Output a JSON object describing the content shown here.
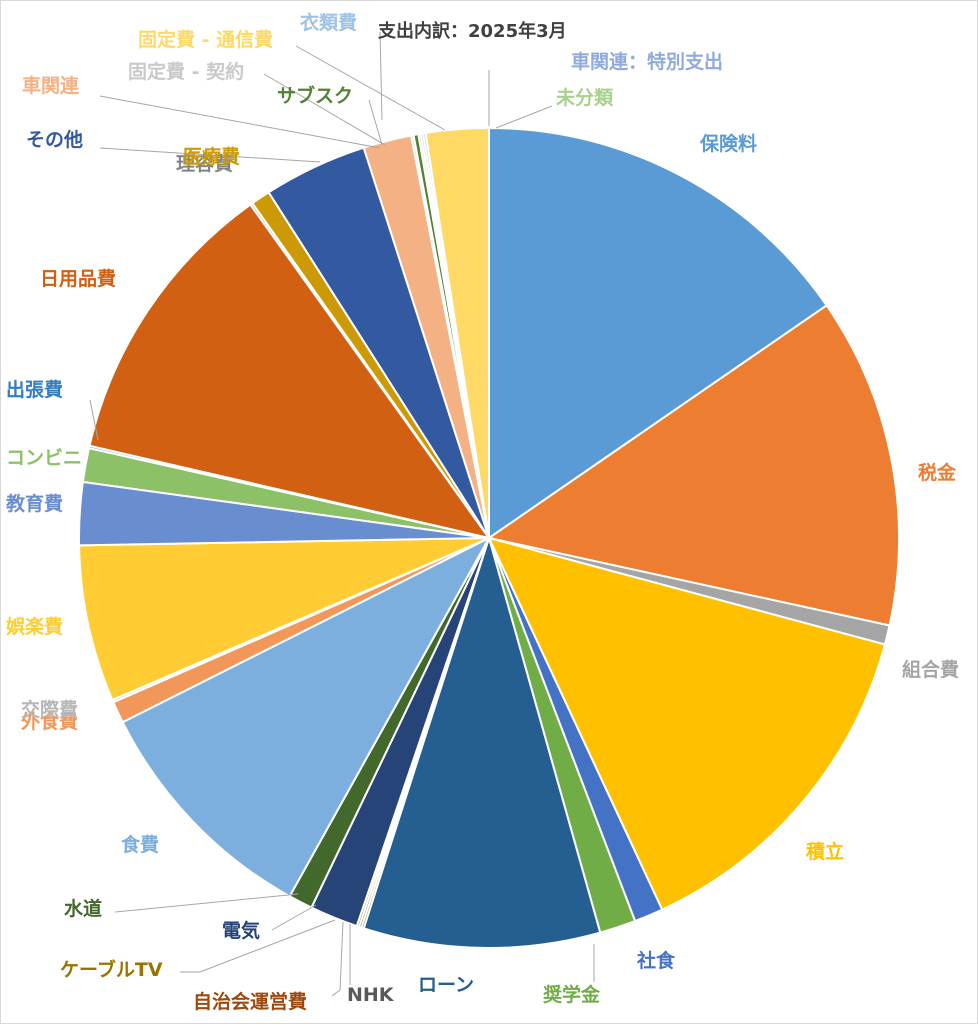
{
  "chart_data": {
    "type": "pie",
    "title": "支出内訳：2025年3月",
    "legend": "none",
    "slices": [
      {
        "label": "保険料",
        "value": 16.2,
        "color": "#5B9BD5"
      },
      {
        "label": "税金",
        "value": 13.7,
        "color": "#ED7D31"
      },
      {
        "label": "組合費",
        "value": 0.8,
        "color": "#A5A5A5"
      },
      {
        "label": "積立",
        "value": 14.6,
        "color": "#FFC000"
      },
      {
        "label": "社食",
        "value": 1.2,
        "color": "#4472C4"
      },
      {
        "label": "奨学金",
        "value": 1.5,
        "color": "#70AD47"
      },
      {
        "label": "ローン",
        "value": 9.8,
        "color": "#255E91"
      },
      {
        "label": "NHK",
        "value": 0.1,
        "color": "#9E480E"
      },
      {
        "label": "自治会運営費",
        "value": 0.1,
        "color": "#636363"
      },
      {
        "label": "ケーブルTV",
        "value": 0.1,
        "color": "#997300"
      },
      {
        "label": "電気",
        "value": 2.0,
        "color": "#264478"
      },
      {
        "label": "水道",
        "value": 1.0,
        "color": "#43682B"
      },
      {
        "label": "食費",
        "value": 10.0,
        "color": "#7CAFDD"
      },
      {
        "label": "外食費",
        "value": 0.9,
        "color": "#F1975A"
      },
      {
        "label": "交際費",
        "value": 0.1,
        "color": "#B7B7B7"
      },
      {
        "label": "娯楽費",
        "value": 6.5,
        "color": "#FFCD33"
      },
      {
        "label": "教育費",
        "value": 2.6,
        "color": "#698ED0"
      },
      {
        "label": "コンビニ",
        "value": 1.4,
        "color": "#8CC168"
      },
      {
        "label": "出張費",
        "value": 0.1,
        "color": "#327DC2"
      },
      {
        "label": "日用品費",
        "value": 12.1,
        "color": "#D26012"
      },
      {
        "label": "理容費",
        "value": 0.1,
        "color": "#848484"
      },
      {
        "label": "医療費",
        "value": 0.8,
        "color": "#CC9A06"
      },
      {
        "label": "その他",
        "value": 4.3,
        "color": "#335AA1"
      },
      {
        "label": "車関連",
        "value": 2.0,
        "color": "#F4B183"
      },
      {
        "label": "固定費 - 契約",
        "value": 0.1,
        "color": "#C9C9C9"
      },
      {
        "label": "サブスク",
        "value": 0.2,
        "color": "#548235"
      },
      {
        "label": "固定費 - 通信費",
        "value": 0.1,
        "color": "#FFD966"
      },
      {
        "label": "衣類費",
        "value": 0.1,
        "color": "#9DC3E6"
      },
      {
        "label": "車関連：特別支出",
        "value": 0.1,
        "color": "#8FAADC"
      },
      {
        "label": "未分類",
        "value": 2.6,
        "color": "#FFD966"
      }
    ],
    "label_colors": {
      "保険料": "#5B9BD5",
      "税金": "#ED7D31",
      "組合費": "#A5A5A5",
      "積立": "#FFC000",
      "社食": "#4472C4",
      "奨学金": "#70AD47",
      "ローン": "#255E91",
      "NHK": "#595959",
      "自治会運営費": "#9E480E",
      "ケーブルTV": "#997300",
      "電気": "#264478",
      "水道": "#43682B",
      "食費": "#7CAFDD",
      "外食費": "#F1975A",
      "交際費": "#B7B7B7",
      "娯楽費": "#FFCD33",
      "教育費": "#698ED0",
      "コンビニ": "#8CC168",
      "出張費": "#327DC2",
      "日用品費": "#D26012",
      "理容費": "#848484",
      "医療費": "#CC9A06",
      "その他": "#335AA1",
      "車関連": "#F4B183",
      "固定費 - 契約": "#C9C9C9",
      "サブスク": "#548235",
      "固定費 - 通信費": "#FFD966",
      "衣類費": "#9DC3E6",
      "車関連：特別支出": "#8FAADC",
      "未分類": "#A9D18E"
    }
  }
}
